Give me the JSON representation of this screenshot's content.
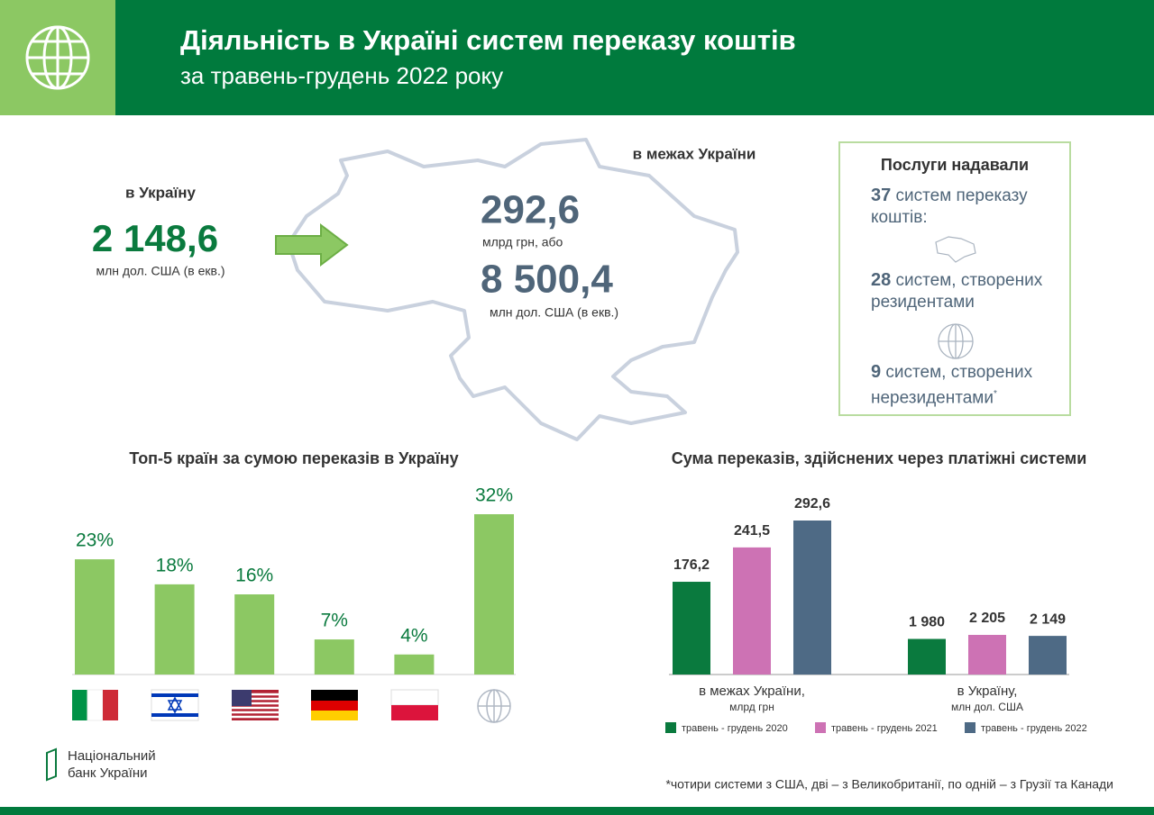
{
  "header": {
    "title": "Діяльність в Україні систем переказу коштів",
    "subtitle": "за травень-грудень 2022 року"
  },
  "inbound": {
    "label": "в Україну",
    "value": "2 148,6",
    "unit": "млн дол. США (в екв.)"
  },
  "domestic": {
    "label": "в межах України",
    "value_uah": "292,6",
    "unit_uah": "млрд грн, або",
    "value_usd": "8 500,4",
    "unit_usd": "млн дол. США (в екв.)"
  },
  "services": {
    "title": "Послуги надавали",
    "items": [
      {
        "number": "37",
        "text": "систем переказу коштів:"
      },
      {
        "number": "28",
        "text": "систем, створених резидентами"
      },
      {
        "number": "9",
        "text": "систем, створених нерезидентами",
        "mark": "*"
      }
    ]
  },
  "chart_data": [
    {
      "type": "bar",
      "title": "Топ-5 країн за сумою переказів в Україну",
      "categories": [
        null,
        null,
        null,
        null,
        null,
        null
      ],
      "values": [
        23,
        18,
        16,
        7,
        4,
        32
      ],
      "value_labels": [
        "23%",
        "18%",
        "16%",
        "7%",
        "4%",
        "32%"
      ],
      "color": "#8cc863",
      "label_color": "#0a7a3e"
    },
    {
      "type": "grouped_bar",
      "title": "Сума переказів, здійснених через платіжні системи",
      "categories": [
        "в межах України,",
        "в Україну,"
      ],
      "category_units": [
        "млрд грн",
        "млн дол. США"
      ],
      "series": [
        {
          "name": "травень - грудень 2020",
          "color": "#0a7a3e",
          "values": [
            176.2,
            1980
          ],
          "value_labels": [
            "176,2",
            "1 980"
          ]
        },
        {
          "name": "травень - грудень 2021",
          "color": "#cd72b4",
          "values": [
            241.5,
            2205
          ],
          "value_labels": [
            "241,5",
            "2 205"
          ]
        },
        {
          "name": "травень - грудень 2022",
          "color": "#4e6a85",
          "values": [
            292.6,
            2149
          ],
          "value_labels": [
            "292,6",
            "2 149"
          ]
        }
      ]
    }
  ],
  "footer": {
    "logo_line1": "Національний",
    "logo_line2": "банк України",
    "note": "*чотири системи з США, дві – з Великобританії, по одній – з Грузії та Канади"
  }
}
